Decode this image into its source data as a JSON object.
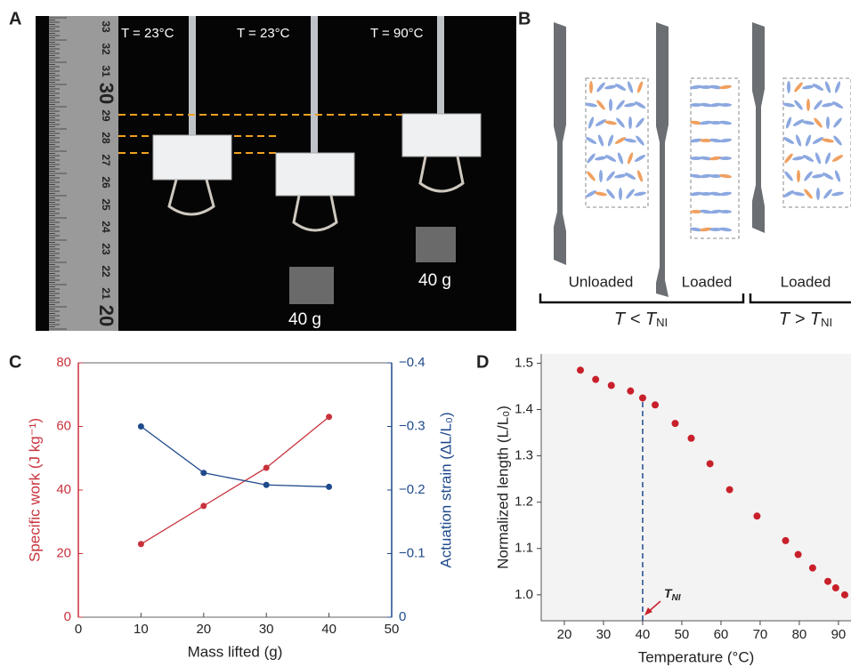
{
  "panels": {
    "A": {
      "letter": "A",
      "ruler": [
        "33",
        "32",
        "31",
        "30",
        "29",
        "28",
        "27",
        "26",
        "25",
        "24",
        "23",
        "22",
        "21",
        "20"
      ],
      "labels": [
        "T = 23°C",
        "T = 23°C",
        "T = 90°C"
      ],
      "masses": [
        "40 g",
        "40 g"
      ]
    },
    "B": {
      "letter": "B",
      "states": [
        "Unloaded",
        "Loaded",
        "Loaded"
      ],
      "conditions": [
        {
          "text": "T < T",
          "sub": "NI"
        },
        {
          "text": "T > T",
          "sub": "NI"
        }
      ]
    },
    "C": {
      "letter": "C"
    },
    "D": {
      "letter": "D"
    }
  },
  "chart_data": [
    {
      "type": "line",
      "x_label": "Mass lifted (g)",
      "y_label": "Specific work (J kg⁻¹)",
      "y2_label": "Actuation strain (ΔL/L₀)",
      "x": [
        10,
        20,
        30,
        40
      ],
      "series": [
        {
          "color": "#c8323c",
          "values": [
            23,
            35,
            47,
            63
          ]
        },
        {
          "color": "#1f4a8c",
          "axis": "y2",
          "values": [
            -0.3,
            -0.227,
            -0.208,
            -0.205
          ]
        }
      ],
      "xlim": [
        0,
        50
      ],
      "xticks": [
        0,
        10,
        20,
        30,
        40,
        50
      ],
      "ylim": [
        0,
        80
      ],
      "yticks": [
        0,
        20,
        40,
        60,
        80
      ],
      "y2lim": [
        0,
        -0.4
      ],
      "y2ticks": [
        0,
        {
          "value": -0.1,
          "label": "−0.1"
        },
        {
          "value": -0.2,
          "label": "−0.2"
        },
        {
          "value": -0.3,
          "label": "−0.3"
        },
        {
          "value": -0.4,
          "label": "−0.4"
        }
      ]
    },
    {
      "type": "scatter",
      "x_label": "Temperature (°C)",
      "y_label": "Normalized length (L/L₀)",
      "color": "#c8202a",
      "x": [
        24.1,
        28,
        32,
        36.9,
        40,
        43.2,
        48.3,
        52.4,
        57.2,
        62.2,
        69.2,
        76.5,
        79.7,
        83.4,
        87.3,
        89.3,
        91.6
      ],
      "values": [
        1.485,
        1.465,
        1.452,
        1.44,
        1.425,
        1.41,
        1.37,
        1.338,
        1.283,
        1.227,
        1.17,
        1.117,
        1.087,
        1.058,
        1.029,
        1.015,
        1.0
      ],
      "xlim": [
        14.1,
        93.2
      ],
      "xticks": [
        20,
        30,
        40,
        50,
        60,
        70,
        80,
        90
      ],
      "ylim": [
        0.944,
        1.52
      ],
      "yticks": [
        {
          "value": 1.0,
          "label": "1.0"
        },
        1.1,
        1.2,
        1.3,
        1.4,
        {
          "value": 1.5,
          "label": "1.5"
        }
      ],
      "annotation": {
        "x": 40,
        "text": "T",
        "sub": "NI"
      }
    }
  ]
}
